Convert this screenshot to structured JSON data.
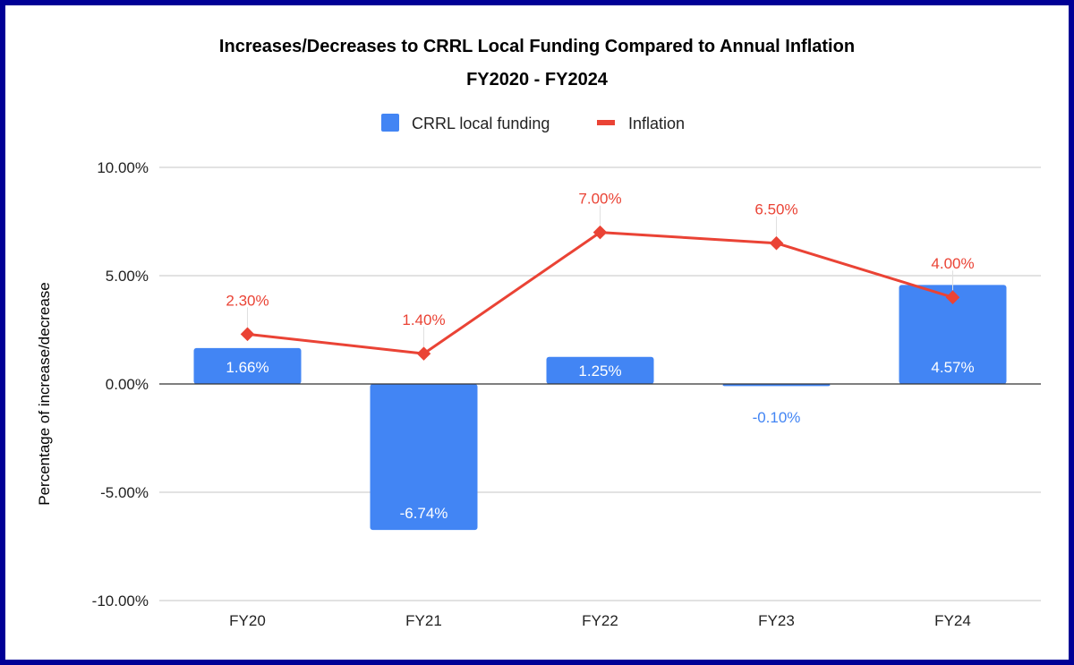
{
  "chart_data": {
    "type": "bar",
    "title": "Increases/Decreases to CRRL Local Funding Compared to Annual Inflation",
    "subtitle": "FY2020 - FY2024",
    "xlabel": "",
    "ylabel": "Percentage of increase/decrease",
    "ylim": [
      -10,
      10
    ],
    "yticks": [
      10,
      5,
      0,
      -5,
      -10
    ],
    "ytick_labels": [
      "10.00%",
      "5.00%",
      "0.00%",
      "-5.00%",
      "-10.00%"
    ],
    "grid": true,
    "legend_position": "top-center",
    "categories": [
      "FY20",
      "FY21",
      "FY22",
      "FY23",
      "FY24"
    ],
    "series": [
      {
        "name": "CRRL local funding",
        "type": "bar",
        "color": "#4285f4",
        "values": [
          1.66,
          -6.74,
          1.25,
          -0.1,
          4.57
        ],
        "labels": [
          "1.66%",
          "-6.74%",
          "1.25%",
          "-0.10%",
          "4.57%"
        ]
      },
      {
        "name": "Inflation",
        "type": "line",
        "color": "#ea4335",
        "marker": "diamond",
        "values": [
          2.3,
          1.4,
          7.0,
          6.5,
          4.0
        ],
        "labels": [
          "2.30%",
          "1.40%",
          "7.00%",
          "6.50%",
          "4.00%"
        ]
      }
    ]
  },
  "frame_color": "#000096"
}
